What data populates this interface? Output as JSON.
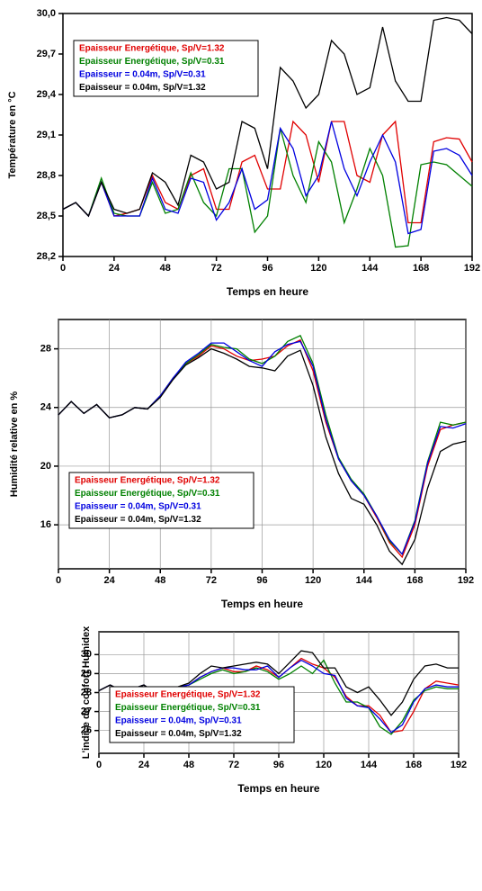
{
  "chart_data": [
    {
      "type": "line",
      "xlabel": "Temps en heure",
      "ylabel": "Température en °C",
      "legend": "upper left",
      "x": [
        0,
        6,
        12,
        18,
        24,
        30,
        36,
        42,
        48,
        54,
        60,
        66,
        72,
        78,
        84,
        90,
        96,
        102,
        108,
        114,
        120,
        126,
        132,
        138,
        144,
        150,
        156,
        162,
        168,
        174,
        180,
        186,
        192
      ],
      "xlim": [
        0,
        192
      ],
      "xticks": [
        0,
        24,
        48,
        72,
        96,
        120,
        144,
        168,
        192
      ],
      "ylim": [
        28.2,
        30.0
      ],
      "yticks": [
        {
          "value": 28.2,
          "label": "28,2"
        },
        {
          "value": 28.5,
          "label": "28,5"
        },
        {
          "value": 28.8,
          "label": "28,8"
        },
        {
          "value": 29.1,
          "label": "29,1"
        },
        {
          "value": 29.4,
          "label": "29,4"
        },
        {
          "value": 29.7,
          "label": "29,7"
        },
        {
          "value": 30.0,
          "label": "30,0"
        }
      ],
      "grid": false,
      "series": [
        {
          "name": "Epaisseur Energétique, Sp/V=1.32",
          "color": "#e00000",
          "values": [
            28.55,
            28.6,
            28.5,
            28.75,
            28.5,
            28.52,
            28.55,
            28.8,
            28.6,
            28.55,
            28.8,
            28.85,
            28.55,
            28.55,
            28.9,
            28.95,
            28.7,
            28.7,
            29.2,
            29.1,
            28.75,
            29.2,
            29.2,
            28.8,
            28.75,
            29.1,
            29.2,
            28.45,
            28.45,
            29.05,
            29.08,
            29.07,
            28.9
          ]
        },
        {
          "name": "Epaisseur Energétique, Sp/V=0.31",
          "color": "#008000",
          "values": [
            28.55,
            28.6,
            28.5,
            28.78,
            28.52,
            28.5,
            28.5,
            28.75,
            28.52,
            28.55,
            28.82,
            28.6,
            28.5,
            28.85,
            28.85,
            28.38,
            28.5,
            29.15,
            28.8,
            28.6,
            29.05,
            28.9,
            28.45,
            28.7,
            29.0,
            28.8,
            28.27,
            28.28,
            28.88,
            28.9,
            28.88,
            28.8,
            28.72
          ]
        },
        {
          "name": "Epaisseur = 0.04m, Sp/V=0.31",
          "color": "#0000e0",
          "values": [
            28.55,
            28.6,
            28.5,
            28.75,
            28.5,
            28.5,
            28.5,
            28.78,
            28.55,
            28.52,
            28.78,
            28.75,
            28.47,
            28.6,
            28.85,
            28.55,
            28.62,
            29.15,
            29.0,
            28.65,
            28.8,
            29.2,
            28.85,
            28.65,
            28.9,
            29.1,
            28.9,
            28.37,
            28.4,
            28.98,
            29.0,
            28.95,
            28.8
          ]
        },
        {
          "name": "Epaisseur = 0.04m, Sp/V=1.32",
          "color": "#000000",
          "values": [
            28.55,
            28.6,
            28.5,
            28.75,
            28.55,
            28.52,
            28.55,
            28.82,
            28.75,
            28.58,
            28.95,
            28.9,
            28.7,
            28.75,
            29.2,
            29.15,
            28.85,
            29.6,
            29.5,
            29.3,
            29.4,
            29.8,
            29.7,
            29.4,
            29.45,
            29.9,
            29.5,
            29.35,
            29.35,
            29.95,
            29.97,
            29.95,
            29.85
          ]
        }
      ]
    },
    {
      "type": "line",
      "xlabel": "Temps en heure",
      "ylabel": "Humidité relative en  %",
      "legend": "lower left",
      "x": [
        0,
        6,
        12,
        18,
        24,
        30,
        36,
        42,
        48,
        54,
        60,
        66,
        72,
        78,
        84,
        90,
        96,
        102,
        108,
        114,
        120,
        126,
        132,
        138,
        144,
        150,
        156,
        162,
        168,
        174,
        180,
        186,
        192
      ],
      "xlim": [
        0,
        192
      ],
      "xticks": [
        0,
        24,
        48,
        72,
        96,
        120,
        144,
        168,
        192
      ],
      "ylim": [
        13,
        30
      ],
      "yticks": [
        16,
        20,
        24,
        28
      ],
      "grid": true,
      "series": [
        {
          "name": "Epaisseur Energétique, Sp/V=1.32",
          "color": "#e00000",
          "values": [
            23.5,
            24.4,
            23.6,
            24.2,
            23.3,
            23.5,
            24,
            23.9,
            24.8,
            26,
            27,
            27.5,
            28.2,
            28,
            27.5,
            27.2,
            27.3,
            27.5,
            28.2,
            28.6,
            26.5,
            23,
            20.5,
            19,
            18,
            16.5,
            14.8,
            13.8,
            16,
            20,
            22.5,
            22.8,
            23
          ]
        },
        {
          "name": "Epaisseur Energétique, Sp/V=0.31",
          "color": "#008000",
          "values": [
            23.5,
            24.4,
            23.6,
            24.2,
            23.3,
            23.5,
            24,
            23.9,
            24.8,
            26,
            27,
            27.6,
            28.3,
            28.1,
            28,
            27.3,
            27,
            27.5,
            28.5,
            28.9,
            27,
            23.5,
            20.6,
            19.1,
            18.1,
            16.6,
            14.9,
            14,
            16.3,
            20.3,
            23,
            22.8,
            23
          ]
        },
        {
          "name": "Epaisseur = 0.04m, Sp/V=0.31",
          "color": "#0000e0",
          "values": [
            23.5,
            24.4,
            23.6,
            24.2,
            23.3,
            23.5,
            24,
            23.9,
            24.8,
            26,
            27.1,
            27.7,
            28.4,
            28.4,
            27.8,
            27.2,
            26.8,
            27.8,
            28.3,
            28.5,
            26.8,
            23.2,
            20.5,
            19,
            18,
            16.6,
            15,
            14,
            16.2,
            20.2,
            22.7,
            22.6,
            22.9
          ]
        },
        {
          "name": "Epaisseur = 0.04m, Sp/V=1.32",
          "color": "#000000",
          "values": [
            23.5,
            24.4,
            23.6,
            24.2,
            23.3,
            23.5,
            24,
            23.9,
            24.7,
            25.9,
            26.9,
            27.4,
            28,
            27.7,
            27.3,
            26.8,
            26.7,
            26.5,
            27.5,
            27.9,
            25.5,
            22,
            19.5,
            17.8,
            17.4,
            16,
            14.2,
            13.3,
            15,
            18.5,
            21,
            21.5,
            21.7
          ]
        }
      ]
    },
    {
      "type": "line",
      "xlabel": "Temps en heure",
      "ylabel": "L'indice de confort  Humidex",
      "legend": "lower left",
      "x": [
        0,
        6,
        12,
        18,
        24,
        30,
        36,
        42,
        48,
        54,
        60,
        66,
        72,
        78,
        84,
        90,
        96,
        102,
        108,
        114,
        120,
        126,
        132,
        138,
        144,
        150,
        156,
        162,
        168,
        174,
        180,
        186,
        192
      ],
      "xlim": [
        0,
        192
      ],
      "xticks": [
        0,
        24,
        48,
        72,
        96,
        120,
        144,
        168,
        192
      ],
      "ylim": [
        24.8,
        31.2
      ],
      "yticks": [
        26,
        27,
        28,
        29,
        30
      ],
      "grid": true,
      "series": [
        {
          "name": "Epaisseur Energétique, Sp/V=1.32",
          "color": "#e00000",
          "values": [
            28.1,
            28.4,
            28.1,
            28.2,
            28.4,
            28.0,
            28.1,
            28.3,
            28.4,
            28.8,
            29.1,
            29.3,
            29.1,
            29.1,
            29.4,
            29.2,
            28.8,
            29.3,
            29.8,
            29.5,
            29.3,
            28.8,
            27.8,
            27.3,
            27.3,
            26.8,
            25.9,
            26,
            27,
            28.2,
            28.6,
            28.5,
            28.4
          ]
        },
        {
          "name": "Epaisseur Energétique, Sp/V=0.31",
          "color": "#008000",
          "values": [
            28.1,
            28.4,
            28.1,
            28.2,
            28.4,
            28.0,
            28.1,
            28.3,
            28.4,
            28.7,
            29.0,
            29.2,
            29.0,
            29.1,
            29.3,
            29.1,
            28.7,
            29.0,
            29.4,
            29.0,
            29.7,
            28.5,
            27.5,
            27.5,
            27.2,
            26.2,
            25.8,
            26.5,
            27.6,
            28.1,
            28.3,
            28.2,
            28.2
          ]
        },
        {
          "name": "Epaisseur = 0.04m, Sp/V=0.31",
          "color": "#0000e0",
          "values": [
            28.1,
            28.4,
            28.1,
            28.2,
            28.4,
            28.0,
            28.1,
            28.3,
            28.4,
            28.8,
            29.1,
            29.3,
            29.3,
            29.2,
            29.2,
            29.4,
            28.8,
            29.3,
            29.7,
            29.4,
            29.0,
            28.9,
            27.7,
            27.3,
            27.2,
            26.6,
            25.9,
            26.3,
            27.5,
            28.2,
            28.4,
            28.3,
            28.3
          ]
        },
        {
          "name": "Epaisseur = 0.04m, Sp/V=1.32",
          "color": "#000000",
          "values": [
            28.1,
            28.4,
            28.1,
            28.2,
            28.4,
            28.0,
            28.1,
            28.3,
            28.5,
            29,
            29.4,
            29.3,
            29.4,
            29.5,
            29.6,
            29.5,
            29.0,
            29.6,
            30.2,
            30.1,
            29.3,
            29.3,
            28.3,
            28.0,
            28.3,
            27.6,
            26.8,
            27.5,
            28.7,
            29.4,
            29.5,
            29.3,
            29.3
          ]
        }
      ]
    }
  ]
}
